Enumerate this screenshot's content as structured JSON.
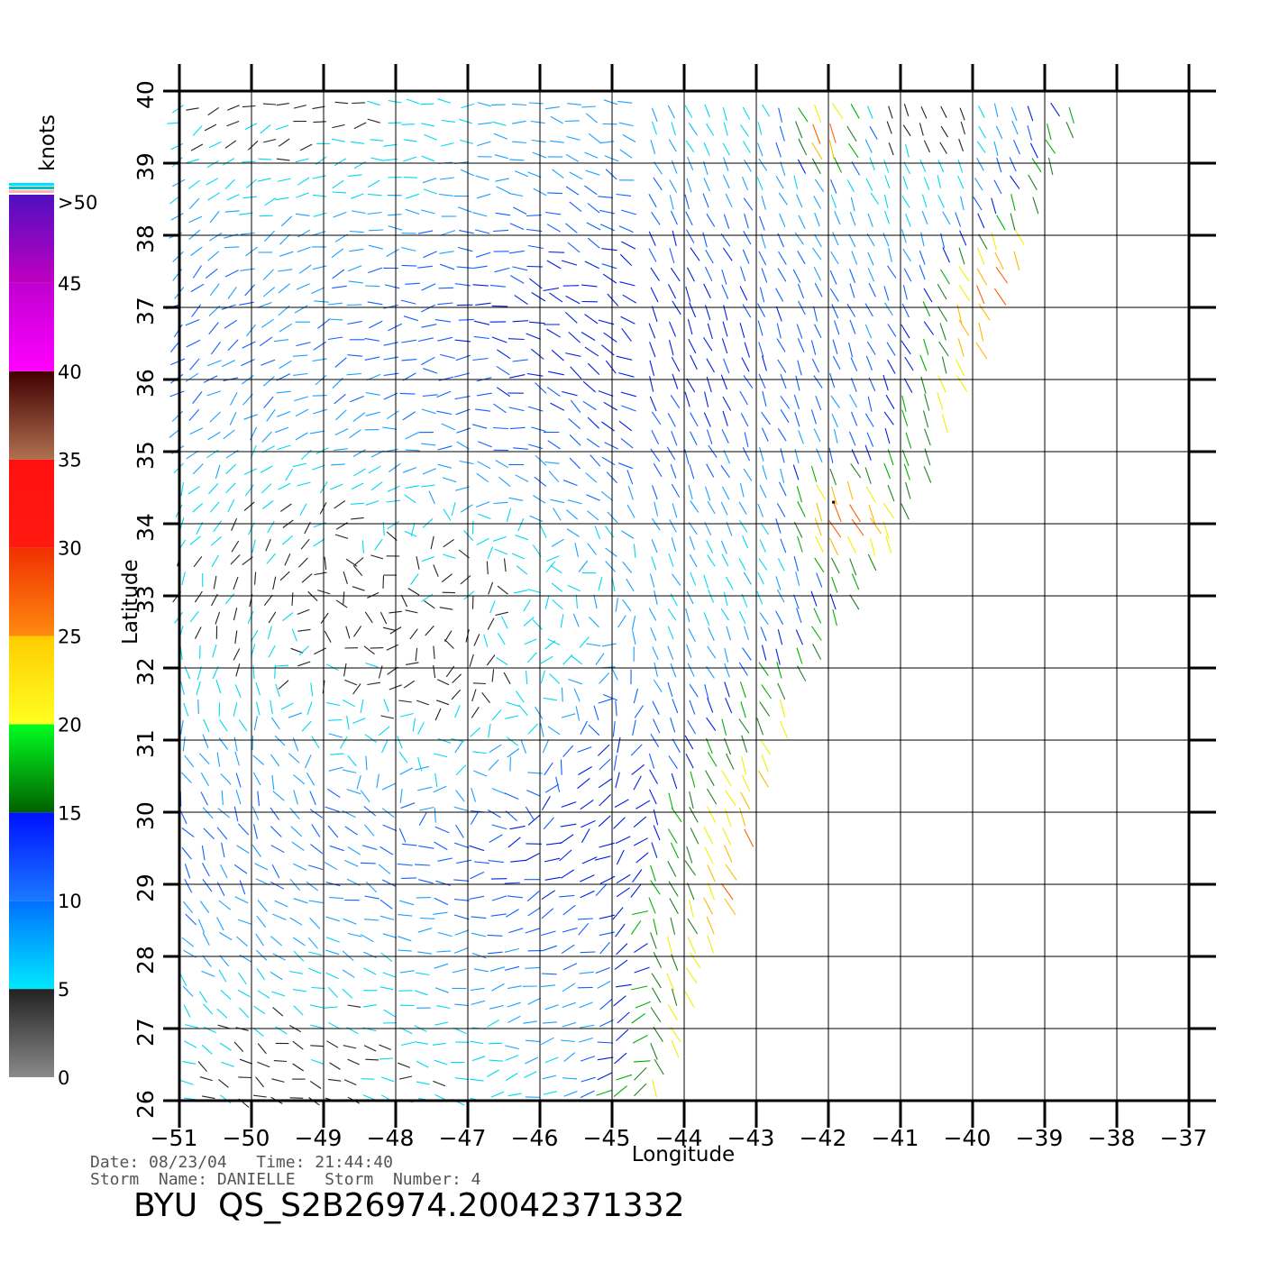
{
  "colorbar": {
    "title": "knots",
    "tick_labels": [
      ">50",
      "45",
      "40",
      "35",
      "30",
      "25",
      "20",
      "15",
      "10",
      "5",
      "0"
    ],
    "bands": [
      {
        "from": 0,
        "to": 5,
        "colors": [
          "#8a8a8a",
          "#222222"
        ]
      },
      {
        "from": 5,
        "to": 10,
        "colors": [
          "#00e8ff",
          "#0070ff"
        ]
      },
      {
        "from": 10,
        "to": 15,
        "colors": [
          "#1a7aff",
          "#0010ff"
        ]
      },
      {
        "from": 15,
        "to": 20,
        "colors": [
          "#006000",
          "#00ff20"
        ]
      },
      {
        "from": 20,
        "to": 25,
        "colors": [
          "#ffff20",
          "#ffcc00"
        ]
      },
      {
        "from": 25,
        "to": 30,
        "colors": [
          "#ff8a10",
          "#f03000"
        ]
      },
      {
        "from": 30,
        "to": 35,
        "colors": [
          "#ff1a10",
          "#ff1010"
        ]
      },
      {
        "from": 35,
        "to": 40,
        "colors": [
          "#b07050",
          "#400000"
        ]
      },
      {
        "from": 40,
        "to": 45,
        "colors": [
          "#ff00ff",
          "#c000d0"
        ]
      },
      {
        "from": 45,
        "to": 50,
        "colors": [
          "#c000c0",
          "#5010c0"
        ]
      }
    ],
    "top_swatches": [
      "#ffb0b0",
      "#00c0c0",
      "#00e0ff"
    ]
  },
  "axes": {
    "xlabel": "Longitude",
    "ylabel": "Latitude",
    "x_ticks": [
      "-51",
      "-50",
      "-49",
      "-48",
      "-47",
      "-46",
      "-45",
      "-44",
      "-43",
      "-42",
      "-41",
      "-40",
      "-39",
      "-38",
      "-37"
    ],
    "y_ticks": [
      "26",
      "27",
      "28",
      "29",
      "30",
      "31",
      "32",
      "33",
      "34",
      "35",
      "36",
      "37",
      "38",
      "39",
      "40"
    ],
    "lon_range": [
      -51,
      -37
    ],
    "lat_range": [
      26,
      40
    ],
    "grid": true
  },
  "swath": {
    "edge_points": [
      [
        -38.5,
        40
      ],
      [
        -40.6,
        35
      ],
      [
        -41.3,
        33.6
      ],
      [
        -42.6,
        31.6
      ],
      [
        -43.5,
        28.6
      ],
      [
        -44.5,
        26
      ]
    ]
  },
  "wind_regions": [
    {
      "center": [
        -47.2,
        32.0
      ],
      "radius": 2.4,
      "speed": 3,
      "label": "low-wind core"
    },
    {
      "center": [
        -41.9,
        34.2
      ],
      "radius": 1.0,
      "speed": 31,
      "label": "strong wind band south"
    },
    {
      "center": [
        -42.1,
        39.5
      ],
      "radius": 0.8,
      "speed": 32,
      "label": "strong wind band north"
    },
    {
      "center": [
        -39.6,
        37.2
      ],
      "radius": 1.2,
      "speed": 27,
      "label": "swath edge winds"
    }
  ],
  "info": {
    "date_line": "Date: 08/23/04   Time: 21:44:40",
    "storm_line": "Storm  Name: DANIELLE   Storm  Number: 4",
    "product": "BYU  QS_S2B26974.20042371332"
  }
}
